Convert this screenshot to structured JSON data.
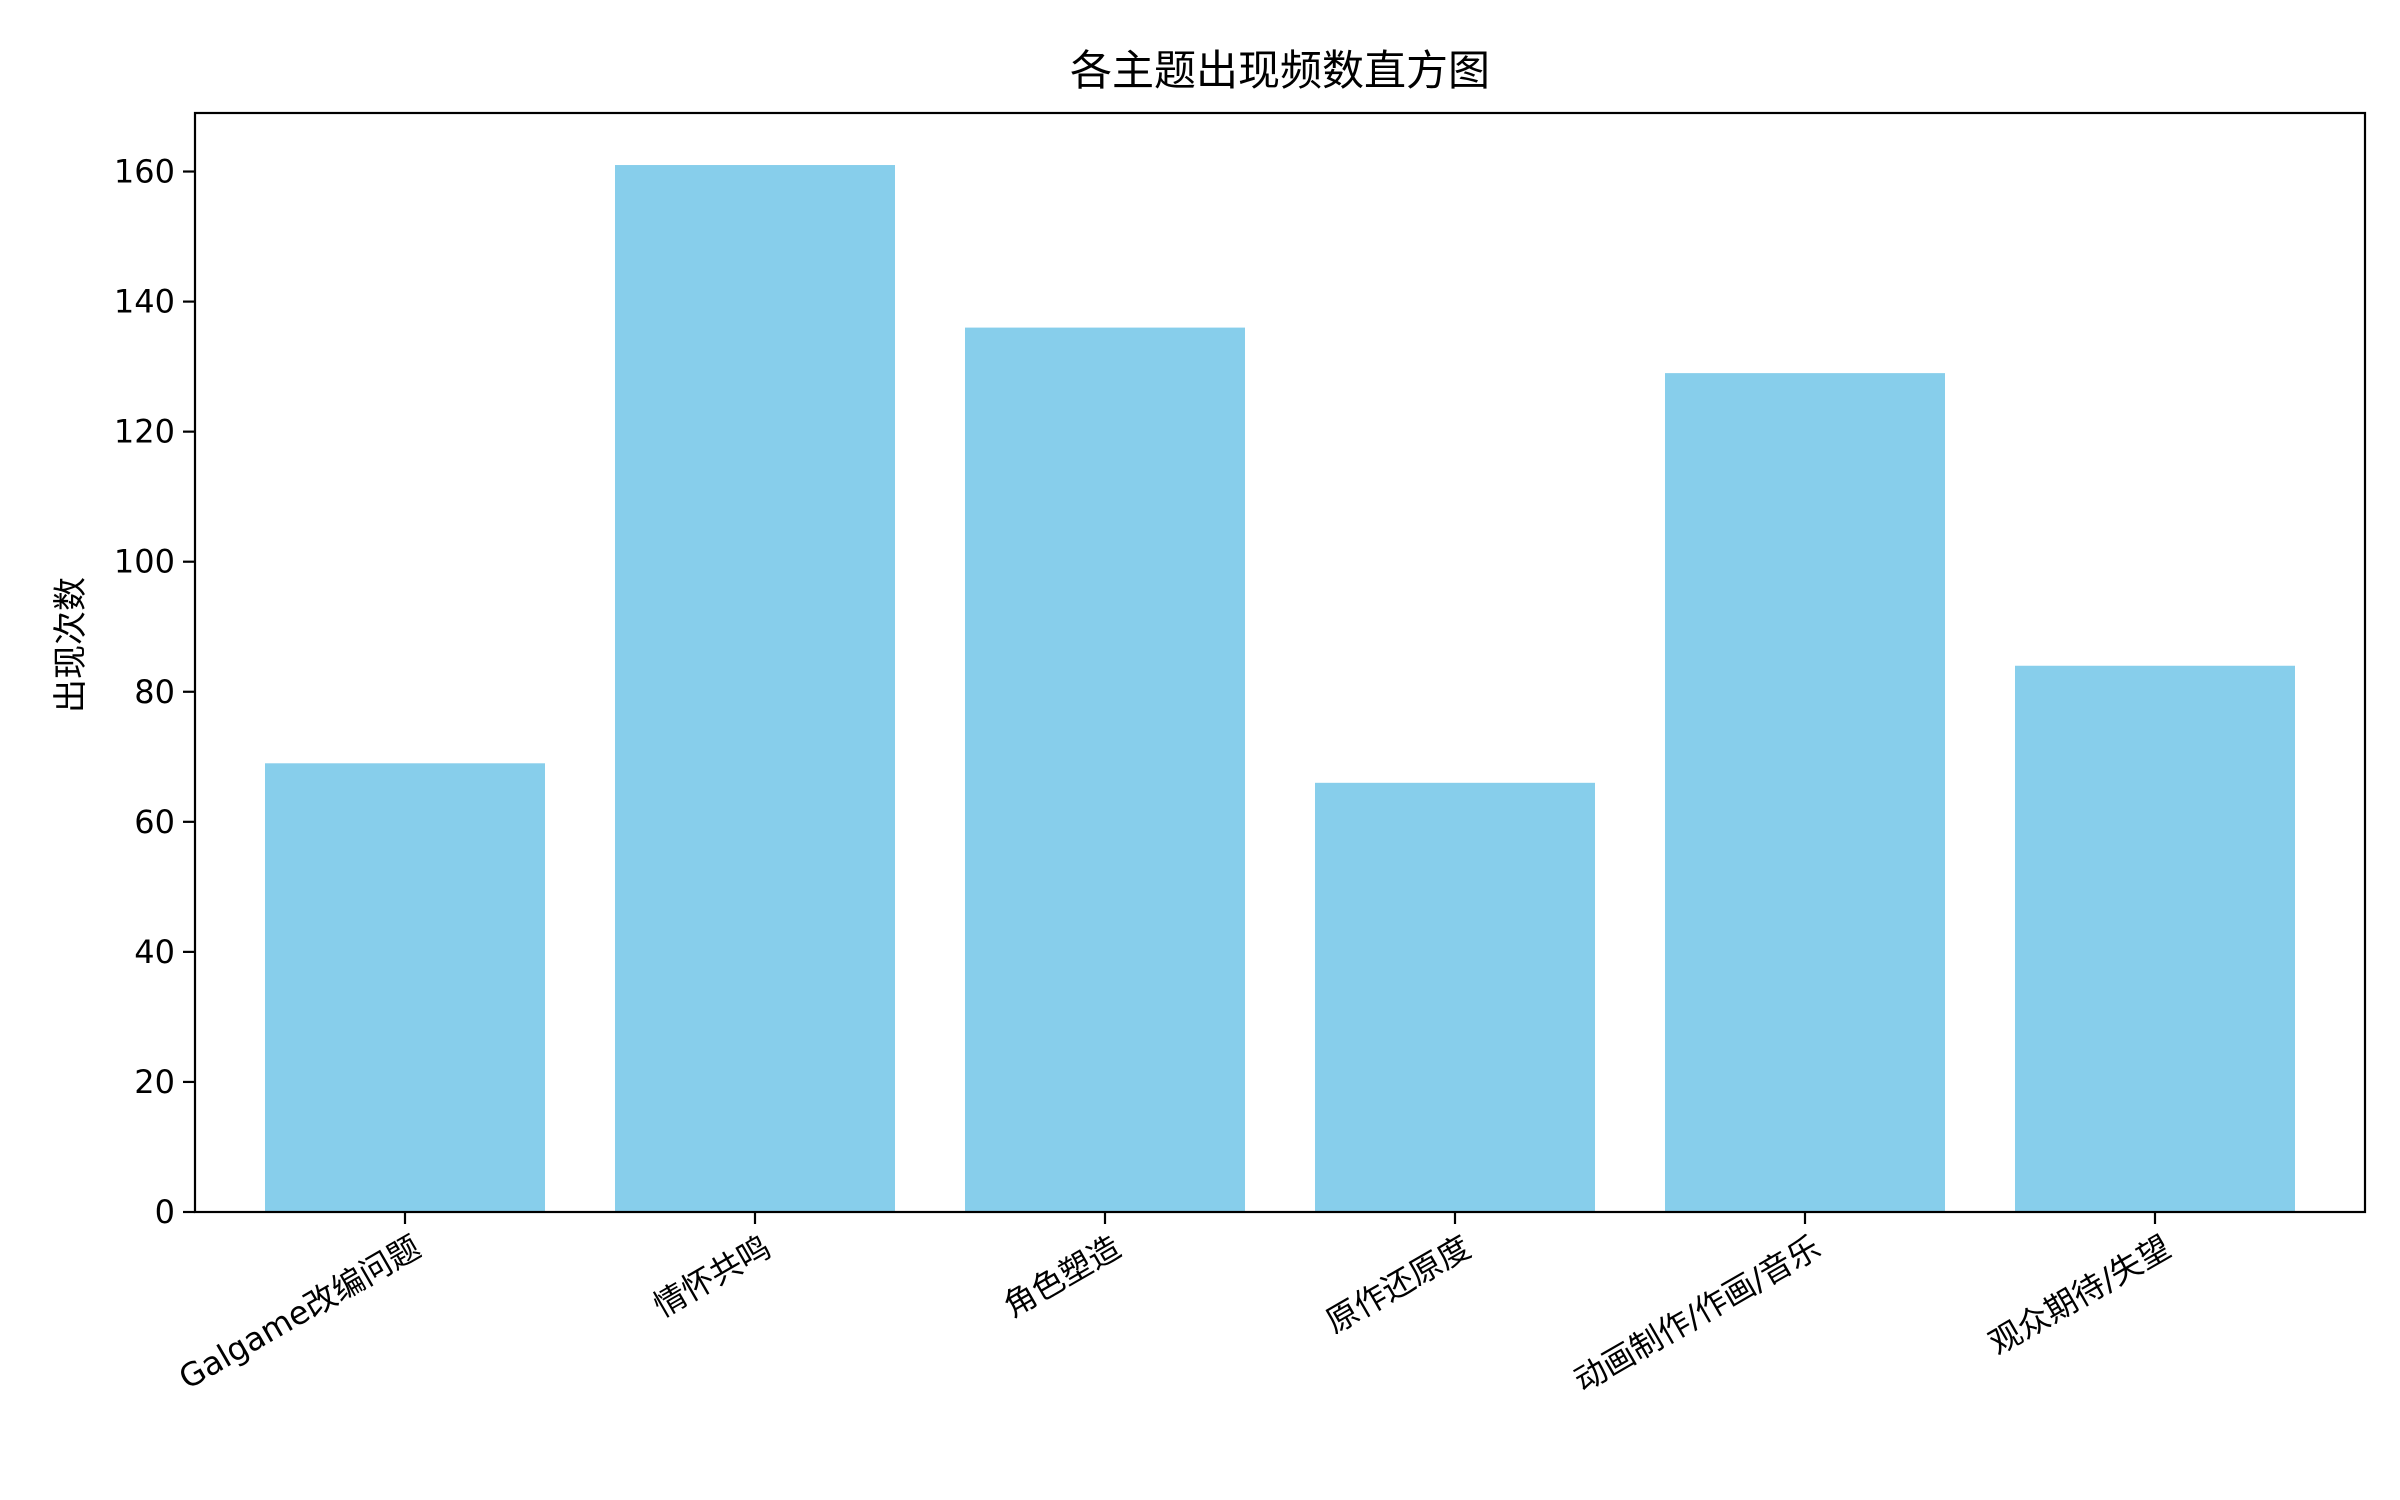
{
  "chart_data": {
    "type": "bar",
    "title": "各主题出现频数直方图",
    "xlabel": "",
    "ylabel": "出现次数",
    "categories": [
      "Galgame改编问题",
      "情怀共鸣",
      "角色塑造",
      "原作还原度",
      "动画制作/作画/音乐",
      "观众期待/失望"
    ],
    "values": [
      69,
      161,
      136,
      66,
      129,
      84
    ],
    "ylim": [
      0,
      169
    ],
    "yticks": [
      0,
      20,
      40,
      60,
      80,
      100,
      120,
      140,
      160
    ],
    "bar_color": "#87CEEB",
    "grid": false,
    "legend": "none"
  }
}
